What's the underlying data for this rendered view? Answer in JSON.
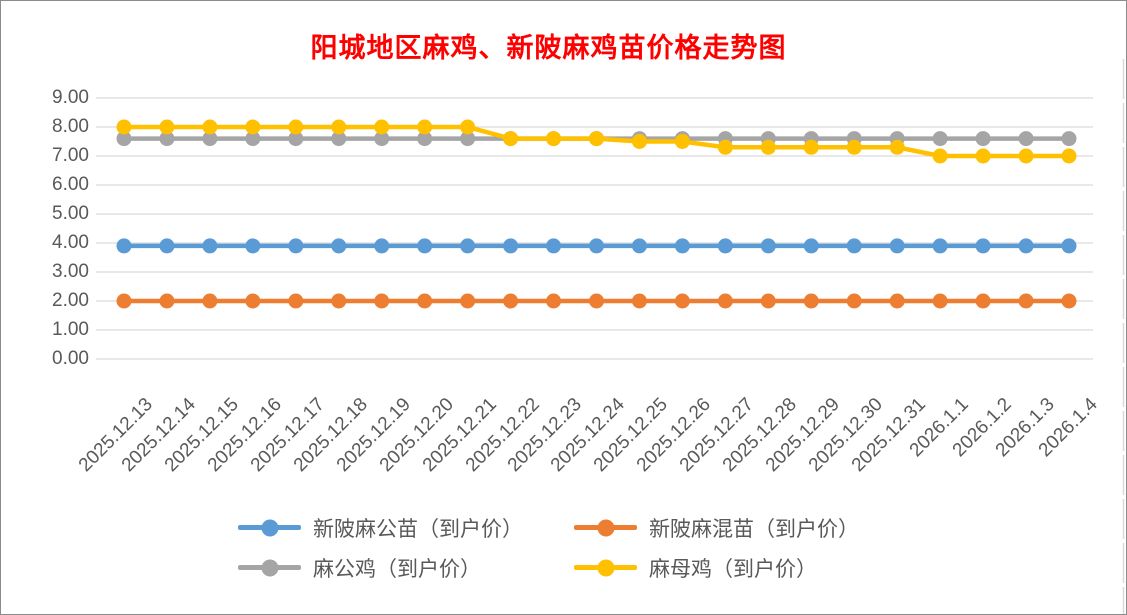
{
  "page": {
    "title": "阳城地区麻鸡、新陂麻鸡苗价格走势图",
    "title_color": "#FF0000",
    "gridline_color": "#D9D9D9",
    "axis_text_color": "#595959"
  },
  "chart_data": {
    "type": "line",
    "title": "阳城地区麻鸡、新陂麻鸡苗价格走势图",
    "xlabel": "",
    "ylabel": "",
    "ylim": [
      0,
      9
    ],
    "ytick_step": 1,
    "ytick_labels": [
      "0.00",
      "1.00",
      "2.00",
      "3.00",
      "4.00",
      "5.00",
      "6.00",
      "7.00",
      "8.00",
      "9.00"
    ],
    "grid": true,
    "legend_position": "bottom",
    "x_label_rotation_deg": 45,
    "categories": [
      "2025.12.13",
      "2025.12.14",
      "2025.12.15",
      "2025.12.16",
      "2025.12.17",
      "2025.12.18",
      "2025.12.19",
      "2025.12.20",
      "2025.12.21",
      "2025.12.22",
      "2025.12.23",
      "2025.12.24",
      "2025.12.25",
      "2025.12.26",
      "2025.12.27",
      "2025.12.28",
      "2025.12.29",
      "2025.12.30",
      "2025.12.31",
      "2026.1.1",
      "2026.1.2",
      "2026.1.3",
      "2026.1.4"
    ],
    "series": [
      {
        "name": "新陂麻公苗（到户价）",
        "color": "#5B9BD5",
        "values": [
          3.9,
          3.9,
          3.9,
          3.9,
          3.9,
          3.9,
          3.9,
          3.9,
          3.9,
          3.9,
          3.9,
          3.9,
          3.9,
          3.9,
          3.9,
          3.9,
          3.9,
          3.9,
          3.9,
          3.9,
          3.9,
          3.9,
          3.9
        ]
      },
      {
        "name": "新陂麻混苗（到户价）",
        "color": "#ED7D31",
        "values": [
          2.0,
          2.0,
          2.0,
          2.0,
          2.0,
          2.0,
          2.0,
          2.0,
          2.0,
          2.0,
          2.0,
          2.0,
          2.0,
          2.0,
          2.0,
          2.0,
          2.0,
          2.0,
          2.0,
          2.0,
          2.0,
          2.0,
          2.0
        ]
      },
      {
        "name": "麻公鸡（到户价）",
        "color": "#A5A5A5",
        "values": [
          7.6,
          7.6,
          7.6,
          7.6,
          7.6,
          7.6,
          7.6,
          7.6,
          7.6,
          7.6,
          7.6,
          7.6,
          7.6,
          7.6,
          7.6,
          7.6,
          7.6,
          7.6,
          7.6,
          7.6,
          7.6,
          7.6,
          7.6
        ]
      },
      {
        "name": "麻母鸡（到户价）",
        "color": "#FFC000",
        "values": [
          8.0,
          8.0,
          8.0,
          8.0,
          8.0,
          8.0,
          8.0,
          8.0,
          8.0,
          7.6,
          7.6,
          7.6,
          7.5,
          7.5,
          7.3,
          7.3,
          7.3,
          7.3,
          7.3,
          7.0,
          7.0,
          7.0,
          7.0
        ]
      }
    ]
  }
}
